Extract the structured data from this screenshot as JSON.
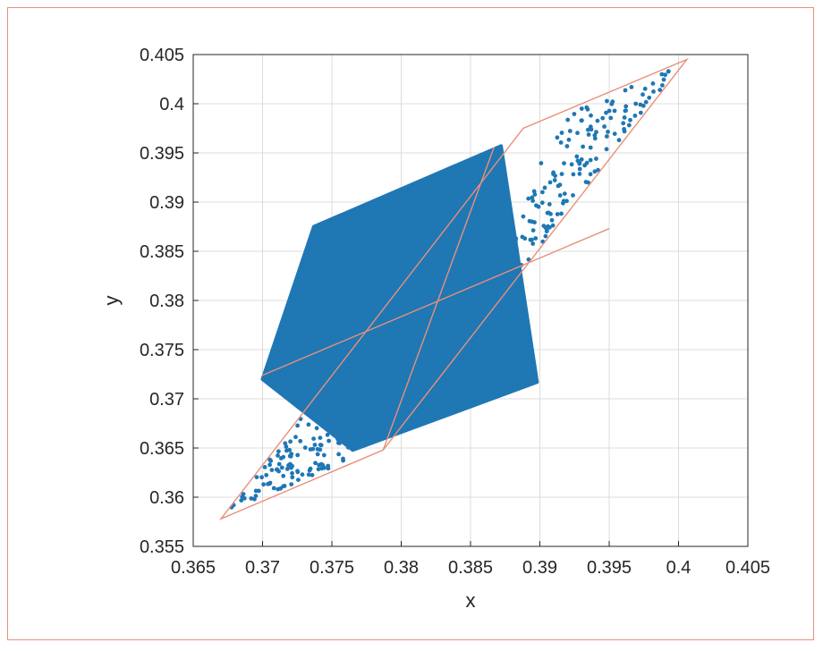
{
  "chart_data": {
    "type": "scatter",
    "title": "",
    "xlabel": "x",
    "ylabel": "y",
    "xlim": [
      0.365,
      0.405
    ],
    "ylim": [
      0.355,
      0.405
    ],
    "xticks": [
      "0.365",
      "0.37",
      "0.375",
      "0.38",
      "0.385",
      "0.39",
      "0.395",
      "0.4",
      "0.405"
    ],
    "yticks": [
      "0.355",
      "0.36",
      "0.365",
      "0.37",
      "0.375",
      "0.38",
      "0.385",
      "0.39",
      "0.395",
      "0.4",
      "0.405"
    ],
    "grid": true,
    "scatter_region": {
      "dense_core_polygon": [
        [
          0.3737,
          0.3875
        ],
        [
          0.3872,
          0.3957
        ],
        [
          0.3898,
          0.3717
        ],
        [
          0.3765,
          0.3648
        ],
        [
          0.37,
          0.372
        ]
      ],
      "sparse_tail_low": [
        0.367,
        0.358
      ],
      "sparse_tail_high": [
        0.4005,
        0.404
      ],
      "color": "#1f77b4"
    },
    "bounding_parallelogram": {
      "vertices": [
        [
          0.367,
          0.3578
        ],
        [
          0.3787,
          0.3648
        ],
        [
          0.4006,
          0.4045
        ],
        [
          0.3888,
          0.3975
        ]
      ],
      "color": "#e8907a"
    },
    "diagonal_lines": [
      {
        "from": [
          0.37,
          0.3724
        ],
        "to": [
          0.395,
          0.3873
        ]
      },
      {
        "from": [
          0.3787,
          0.3648
        ],
        "to": [
          0.3867,
          0.3956
        ]
      }
    ]
  }
}
